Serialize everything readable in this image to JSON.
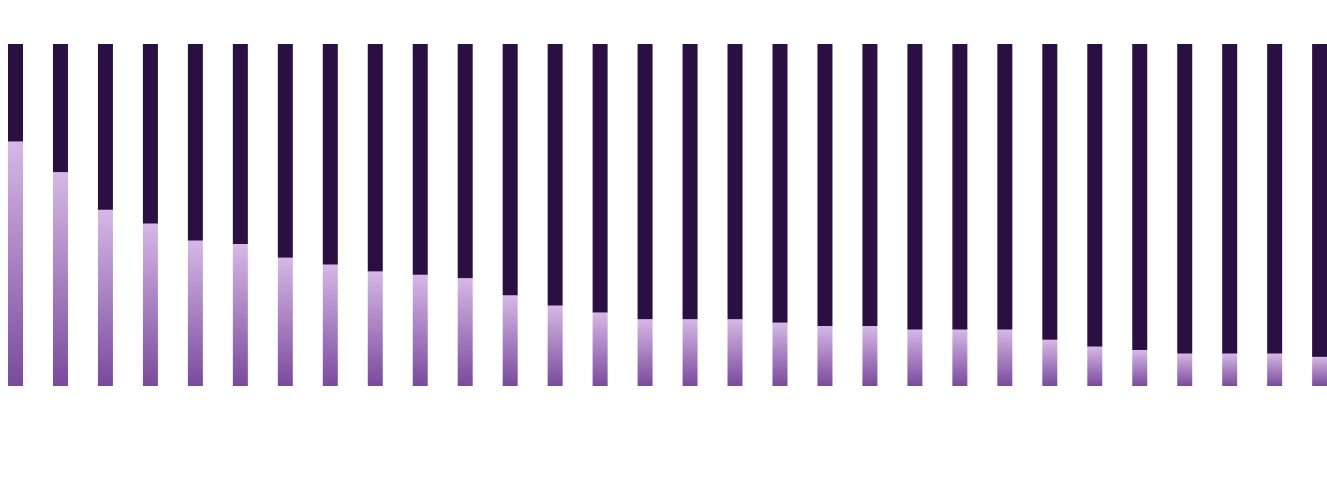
{
  "chart_data": {
    "type": "bar",
    "stacked": true,
    "normalized": true,
    "categories": [
      "",
      "",
      "",
      "",
      "",
      "",
      "",
      "",
      "",
      "",
      "",
      "",
      "",
      "",
      "",
      "",
      "",
      "",
      "",
      "",
      "",
      "",
      "",
      "",
      "",
      "",
      "",
      "",
      "",
      ""
    ],
    "series": [
      {
        "values": [
          71.5,
          62.5,
          51.5,
          47.5,
          42.5,
          41.5,
          37.5,
          35.5,
          33.5,
          32.5,
          31.5,
          26.5,
          23.5,
          21.5,
          19.5,
          19.5,
          19.5,
          18.5,
          17.5,
          17.5,
          16.5,
          16.5,
          16.5,
          13.5,
          11.5,
          10.5,
          9.5,
          9.5,
          9.5,
          8.5
        ]
      },
      {
        "values": [
          28.5,
          37.5,
          48.5,
          52.5,
          57.5,
          58.5,
          62.5,
          64.5,
          66.5,
          67.5,
          68.5,
          73.5,
          76.5,
          78.5,
          80.5,
          80.5,
          80.5,
          81.5,
          82.5,
          82.5,
          83.5,
          83.5,
          83.5,
          86.5,
          88.5,
          89.5,
          90.5,
          90.5,
          90.5,
          91.5
        ]
      }
    ],
    "ylim": [
      0,
      100
    ],
    "grid": false,
    "legend": "none",
    "colors": {
      "lower_top": "#d6b8e6",
      "lower_bottom": "#7a4a9c",
      "upper": "#2a1042"
    }
  }
}
